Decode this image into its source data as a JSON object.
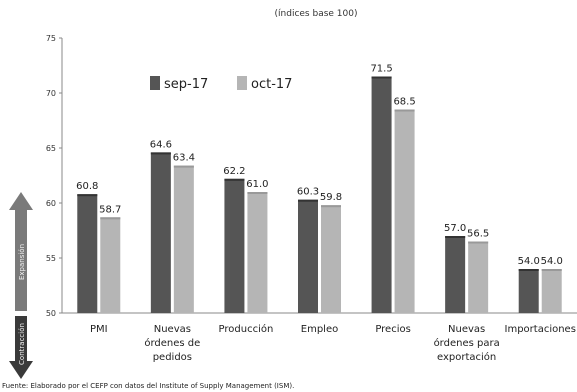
{
  "chart_data": {
    "type": "bar",
    "subtitle": "(índices base 100)",
    "categories": [
      [
        "PMI"
      ],
      [
        "Nuevas",
        "órdenes de",
        "pedidos"
      ],
      [
        "Producción"
      ],
      [
        "Empleo"
      ],
      [
        "Precios"
      ],
      [
        "Nuevas",
        "órdenes para",
        "exportación"
      ],
      [
        "Importaciones"
      ]
    ],
    "series": [
      {
        "name": "sep-17",
        "values": [
          60.8,
          64.6,
          62.2,
          60.3,
          71.5,
          57.0,
          54.0
        ],
        "color": "#555555"
      },
      {
        "name": "oct-17",
        "values": [
          58.7,
          63.4,
          61.0,
          59.8,
          68.5,
          56.5,
          54.0
        ],
        "color": "#b5b5b5"
      }
    ],
    "yticks": [
      50,
      55,
      60,
      65,
      70,
      75
    ],
    "ylim": [
      50,
      75
    ],
    "grid": false,
    "legend_position": "top-left",
    "value_labels": [
      "60.8",
      "58.7",
      "64.6",
      "63.4",
      "62.2",
      "61.0",
      "60.3",
      "59.8",
      "71.5",
      "68.5",
      "57.0",
      "56.5",
      "54.0",
      "54.0"
    ],
    "arrows": {
      "up_label": "Expansión",
      "down_label": "Contracción",
      "up_color": "#7a7a7a",
      "down_color": "#3a3a3a"
    },
    "source": "Fuente: Elaborado por el CEFP con datos del Institute of Supply Management (ISM)."
  }
}
